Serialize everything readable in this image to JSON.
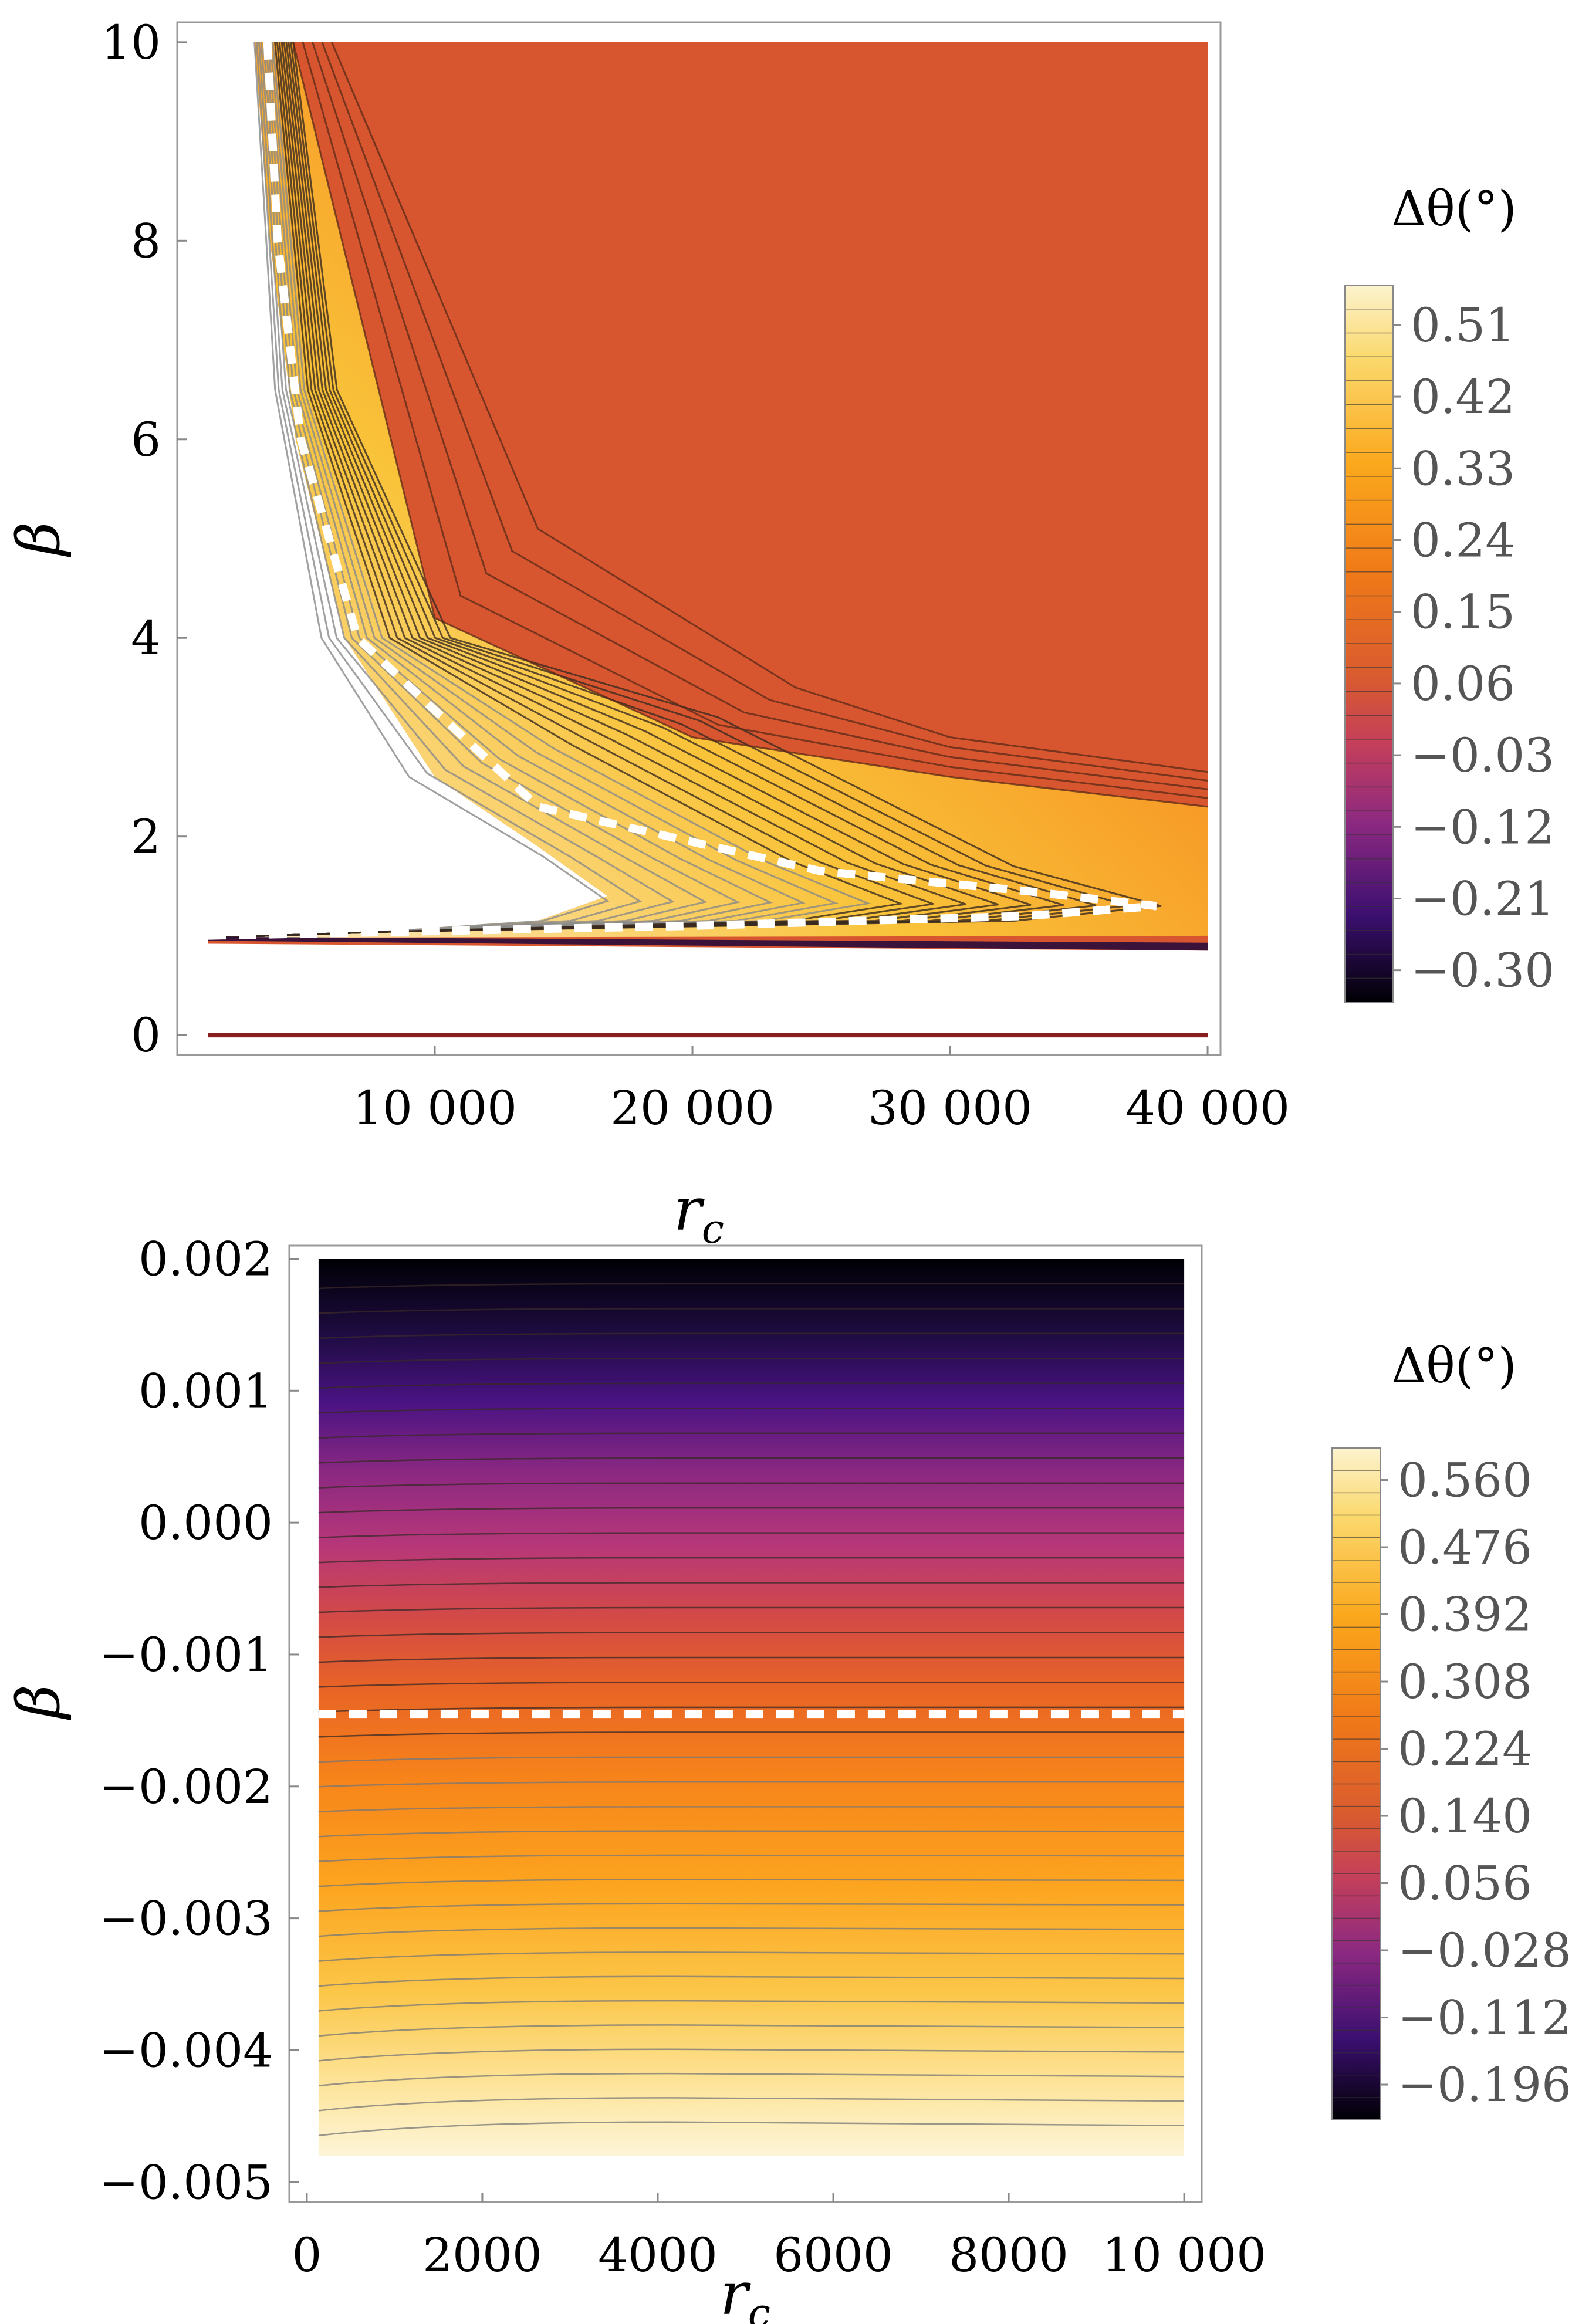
{
  "chart_data": [
    {
      "type": "contour",
      "xlabel": "r_c",
      "ylabel": "β",
      "xlim": [
        0,
        40500
      ],
      "ylim": [
        -0.2,
        10.2
      ],
      "x_ticks": [
        "10 000",
        "20 000",
        "30 000",
        "40 000"
      ],
      "x_tick_values": [
        10000,
        20000,
        30000,
        40000
      ],
      "y_ticks": [
        "0",
        "2",
        "4",
        "6",
        "8",
        "10"
      ],
      "y_tick_values": [
        0,
        2,
        4,
        6,
        8,
        10
      ],
      "region_curves": {
        "outer_left_boundary": [
          [
            3000,
            10
          ],
          [
            3600,
            8
          ],
          [
            4600,
            6
          ],
          [
            6500,
            4
          ],
          [
            10000,
            2.6
          ],
          [
            14000,
            1.9
          ],
          [
            16700,
            1.4
          ],
          [
            14000,
            1.15
          ],
          [
            8000,
            1.05
          ],
          [
            1200,
            0.98
          ]
        ],
        "inner_curves_top": [
          [
            4500,
            10
          ],
          [
            10000,
            4.2
          ],
          [
            20000,
            3.0
          ],
          [
            30000,
            2.6
          ],
          [
            40000,
            2.3
          ]
        ],
        "dashed_zero_contour": [
          [
            3500,
            10
          ],
          [
            3900,
            8
          ],
          [
            4800,
            6
          ],
          [
            7000,
            4
          ],
          [
            14000,
            2.3
          ],
          [
            25000,
            1.65
          ],
          [
            33000,
            1.45
          ],
          [
            38000,
            1.3
          ],
          [
            33000,
            1.2
          ],
          [
            20000,
            1.1
          ],
          [
            1000,
            1.0
          ]
        ],
        "horizontal_line_beta_0": true
      },
      "colorbar": {
        "title": "Δθ(°)",
        "tick_labels": [
          "0.51",
          "0.42",
          "0.33",
          "0.24",
          "0.15",
          "0.06",
          "−0.03",
          "−0.12",
          "−0.21",
          "−0.30"
        ],
        "tick_values": [
          0.51,
          0.42,
          0.33,
          0.24,
          0.15,
          0.06,
          -0.03,
          -0.12,
          -0.21,
          -0.3
        ],
        "range": [
          -0.34,
          0.56
        ]
      }
    },
    {
      "type": "contour",
      "xlabel": "r_c",
      "ylabel": "β",
      "xlim": [
        -200,
        10200
      ],
      "ylim": [
        -0.00515,
        0.0021
      ],
      "x_ticks": [
        "0",
        "2000",
        "4000",
        "6000",
        "8000",
        "10 000"
      ],
      "x_tick_values": [
        0,
        2000,
        4000,
        6000,
        8000,
        10000
      ],
      "y_ticks": [
        "0.002",
        "0.001",
        "0.000",
        "−0.001",
        "−0.002",
        "−0.003",
        "−0.004",
        "−0.005"
      ],
      "y_tick_values": [
        0.002,
        0.001,
        0.0,
        -0.001,
        -0.002,
        -0.003,
        -0.004,
        -0.005
      ],
      "dashed_zero_contour_beta": -0.00145,
      "filled_region": {
        "x": [
          0,
          10000
        ],
        "beta": [
          -0.0048,
          0.002
        ]
      },
      "colorbar": {
        "title": "Δθ(°)",
        "tick_labels": [
          "0.560",
          "0.476",
          "0.392",
          "0.308",
          "0.224",
          "0.140",
          "0.056",
          "−0.028",
          "−0.112",
          "−0.196"
        ],
        "tick_values": [
          0.56,
          0.476,
          0.392,
          0.308,
          0.224,
          0.14,
          0.056,
          -0.028,
          -0.112,
          -0.196
        ],
        "range": [
          -0.24,
          0.6
        ]
      }
    }
  ],
  "colors": {
    "dark": "#000004",
    "purple": "#3b0f70",
    "magenta": "#8c2981",
    "rose": "#b73779",
    "red_orange": "#d85a30",
    "orange": "#f98e09",
    "yellow": "#f8c932",
    "light": "#fcf3cf"
  }
}
